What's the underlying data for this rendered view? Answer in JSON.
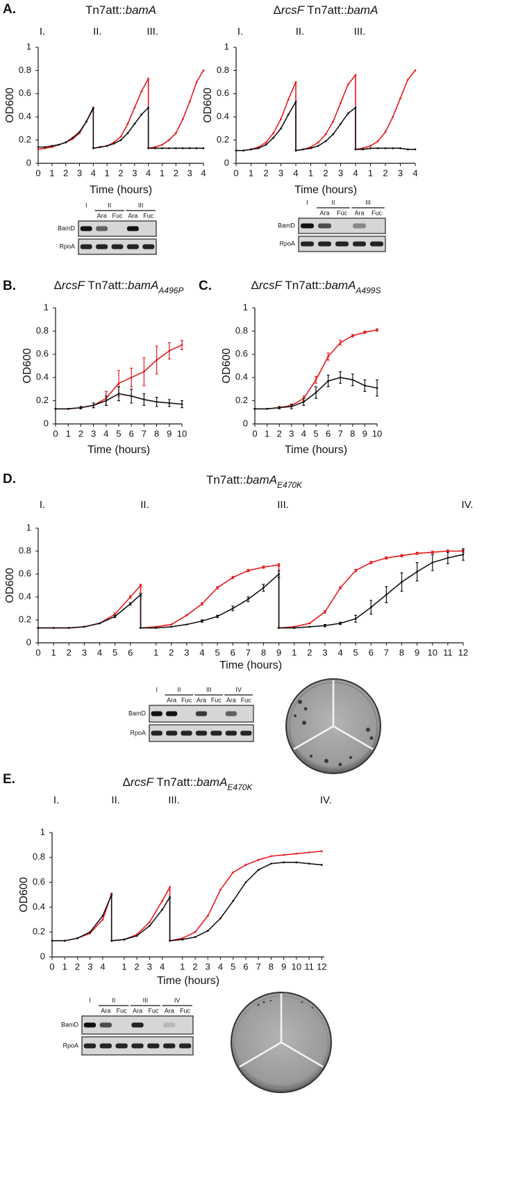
{
  "chart_data": [
    {
      "type": "line",
      "panel": "A.",
      "title": [
        {
          "text": "Tn7att::"
        },
        {
          "text": "bamA",
          "italic": true
        }
      ],
      "phase_labels": [
        {
          "label": "I.",
          "x": 0
        },
        {
          "label": "II.",
          "x": 4
        },
        {
          "label": "III.",
          "x": 8
        }
      ],
      "ylabel": "OD600",
      "xlabel": "Time (hours)",
      "xlim": [
        0,
        12
      ],
      "ylim": [
        0,
        1
      ],
      "yticks": [
        0,
        0.2,
        0.4,
        0.6,
        0.8,
        1
      ],
      "xticks": [
        0,
        1,
        2,
        3,
        4,
        {
          "value": 5,
          "label": "1"
        },
        {
          "value": 6,
          "label": "2"
        },
        {
          "value": 7,
          "label": "3"
        },
        {
          "value": 8,
          "label": "4"
        },
        {
          "value": 9,
          "label": "1"
        },
        {
          "value": 10,
          "label": "2"
        },
        {
          "value": 11,
          "label": "3"
        },
        {
          "value": 12,
          "label": "4"
        }
      ],
      "x": [
        0,
        0.5,
        1,
        1.5,
        2,
        2.5,
        3,
        3.5,
        4,
        4,
        4.5,
        5,
        5.5,
        6,
        6.5,
        7,
        7.5,
        8,
        8,
        8.5,
        9,
        9.5,
        10,
        10.5,
        11,
        11.5,
        12
      ],
      "series": [
        {
          "color": "#e8191c",
          "values": [
            0.12,
            0.13,
            0.14,
            0.16,
            0.18,
            0.21,
            0.26,
            0.36,
            0.47,
            0.13,
            0.14,
            0.15,
            0.18,
            0.23,
            0.34,
            0.48,
            0.62,
            0.73,
            0.13,
            0.14,
            0.16,
            0.2,
            0.26,
            0.38,
            0.53,
            0.7,
            0.8
          ]
        },
        {
          "color": "#111111",
          "values": [
            0.14,
            0.14,
            0.15,
            0.16,
            0.18,
            0.22,
            0.27,
            0.36,
            0.48,
            0.13,
            0.14,
            0.15,
            0.17,
            0.2,
            0.26,
            0.34,
            0.42,
            0.48,
            0.13,
            0.13,
            0.13,
            0.13,
            0.13,
            0.13,
            0.13,
            0.13,
            0.13
          ]
        }
      ],
      "blot": {
        "groups": [
          "I",
          "II",
          "III"
        ],
        "conditions": [
          "Ara",
          "Fuc",
          "Ara",
          "Fuc"
        ],
        "proteins": [
          "BamD",
          "RpoA"
        ]
      }
    },
    {
      "type": "line",
      "title": [
        {
          "text": "Δ"
        },
        {
          "text": "rcsF",
          "italic": true
        },
        {
          "text": " Tn7att::"
        },
        {
          "text": "bamA",
          "italic": true
        }
      ],
      "phase_labels": [
        {
          "label": "I.",
          "x": 0
        },
        {
          "label": "II.",
          "x": 4
        },
        {
          "label": "III.",
          "x": 8
        }
      ],
      "ylabel": "OD600",
      "xlabel": "Time (hours)",
      "xlim": [
        0,
        12
      ],
      "ylim": [
        0,
        1
      ],
      "yticks": [
        0,
        0.2,
        0.4,
        0.6,
        0.8,
        1
      ],
      "xticks": [
        0,
        1,
        2,
        3,
        4,
        {
          "value": 5,
          "label": "1"
        },
        {
          "value": 6,
          "label": "2"
        },
        {
          "value": 7,
          "label": "3"
        },
        {
          "value": 8,
          "label": "4"
        },
        {
          "value": 9,
          "label": "1"
        },
        {
          "value": 10,
          "label": "2"
        },
        {
          "value": 11,
          "label": "3"
        },
        {
          "value": 12,
          "label": "4"
        }
      ],
      "x": [
        0,
        0.5,
        1,
        1.5,
        2,
        2.5,
        3,
        3.5,
        4,
        4,
        4.5,
        5,
        5.5,
        6,
        6.5,
        7,
        7.5,
        8,
        8,
        8.5,
        9,
        9.5,
        10,
        10.5,
        11,
        11.5,
        12
      ],
      "series": [
        {
          "color": "#e8191c",
          "values": [
            0.11,
            0.11,
            0.12,
            0.14,
            0.18,
            0.26,
            0.38,
            0.55,
            0.7,
            0.11,
            0.12,
            0.14,
            0.18,
            0.25,
            0.36,
            0.52,
            0.68,
            0.76,
            0.12,
            0.13,
            0.15,
            0.19,
            0.27,
            0.4,
            0.56,
            0.72,
            0.8
          ]
        },
        {
          "color": "#111111",
          "values": [
            0.11,
            0.11,
            0.12,
            0.13,
            0.16,
            0.22,
            0.3,
            0.42,
            0.53,
            0.11,
            0.12,
            0.13,
            0.15,
            0.19,
            0.25,
            0.34,
            0.43,
            0.48,
            0.12,
            0.12,
            0.13,
            0.13,
            0.13,
            0.13,
            0.13,
            0.12,
            0.12
          ]
        }
      ],
      "blot": {
        "groups": [
          "I",
          "II",
          "III"
        ],
        "conditions": [
          "Ara",
          "Fuc",
          "Ara",
          "Fuc"
        ],
        "proteins": [
          "BamD",
          "RpoA"
        ]
      }
    },
    {
      "type": "line",
      "panel": "B.",
      "title": [
        {
          "text": "Δ"
        },
        {
          "text": "rcsF",
          "italic": true
        },
        {
          "text": " Tn7att::"
        },
        {
          "text": "bamA",
          "italic": true
        },
        {
          "text": "A496P",
          "italic": true,
          "sub": true
        }
      ],
      "ylabel": "OD600",
      "xlabel": "Time (hours)",
      "xlim": [
        0,
        10
      ],
      "ylim": [
        0,
        1
      ],
      "yticks": [
        0,
        0.2,
        0.4,
        0.6,
        0.8,
        1
      ],
      "xticks": [
        0,
        1,
        2,
        3,
        4,
        5,
        6,
        7,
        8,
        9,
        10
      ],
      "x": [
        0,
        1,
        2,
        3,
        4,
        5,
        6,
        7,
        8,
        9,
        10
      ],
      "series": [
        {
          "color": "#e8191c",
          "values": [
            0.13,
            0.13,
            0.14,
            0.16,
            0.22,
            0.35,
            0.4,
            0.45,
            0.55,
            0.63,
            0.68
          ],
          "errors": [
            0,
            0,
            0.01,
            0.02,
            0.06,
            0.11,
            0.08,
            0.12,
            0.12,
            0.07,
            0.04
          ]
        },
        {
          "color": "#111111",
          "values": [
            0.13,
            0.13,
            0.14,
            0.16,
            0.2,
            0.26,
            0.24,
            0.21,
            0.19,
            0.18,
            0.17
          ],
          "errors": [
            0,
            0,
            0.01,
            0.02,
            0.04,
            0.06,
            0.06,
            0.05,
            0.04,
            0.03,
            0.03
          ]
        }
      ]
    },
    {
      "type": "line",
      "panel": "C.",
      "title": [
        {
          "text": "Δ"
        },
        {
          "text": "rcsF",
          "italic": true
        },
        {
          "text": " Tn7att::"
        },
        {
          "text": "bamA",
          "italic": true
        },
        {
          "text": "A499S",
          "italic": true,
          "sub": true
        }
      ],
      "ylabel": "OD600",
      "xlabel": "Time (hours)",
      "xlim": [
        0,
        10
      ],
      "ylim": [
        0,
        1
      ],
      "yticks": [
        0,
        0.2,
        0.4,
        0.6,
        0.8,
        1
      ],
      "xticks": [
        0,
        1,
        2,
        3,
        4,
        5,
        6,
        7,
        8,
        9,
        10
      ],
      "x": [
        0,
        1,
        2,
        3,
        4,
        5,
        6,
        7,
        8,
        9,
        10
      ],
      "series": [
        {
          "color": "#e8191c",
          "values": [
            0.13,
            0.13,
            0.14,
            0.16,
            0.22,
            0.38,
            0.58,
            0.7,
            0.76,
            0.79,
            0.81
          ],
          "errors": [
            0,
            0,
            0,
            0.01,
            0.02,
            0.03,
            0.03,
            0.02,
            0.01,
            0.01,
            0.01
          ]
        },
        {
          "color": "#111111",
          "values": [
            0.13,
            0.13,
            0.14,
            0.15,
            0.19,
            0.27,
            0.37,
            0.4,
            0.38,
            0.33,
            0.31
          ],
          "errors": [
            0,
            0,
            0.01,
            0.02,
            0.03,
            0.05,
            0.05,
            0.05,
            0.05,
            0.05,
            0.07
          ]
        }
      ]
    },
    {
      "type": "line",
      "panel": "D.",
      "title": [
        {
          "text": "Tn7att::"
        },
        {
          "text": "bamA",
          "italic": true
        },
        {
          "text": "E470K",
          "italic": true,
          "sub": true
        }
      ],
      "phase_labels": [
        {
          "label": "I.",
          "x": 0
        },
        {
          "label": "II.",
          "x": 6.67
        },
        {
          "label": "III.",
          "x": 15.67
        },
        {
          "label": "IV.",
          "x": 27.67
        }
      ],
      "ylabel": "OD600",
      "xlabel": "Time (hours)",
      "xlim": [
        0,
        27.67
      ],
      "ylim": [
        0,
        1
      ],
      "yticks": [
        0,
        0.2,
        0.4,
        0.6,
        0.8,
        1
      ],
      "xticks": [
        0,
        1,
        2,
        3,
        4,
        5,
        6,
        {
          "value": 7.67,
          "label": "1"
        },
        {
          "value": 8.67,
          "label": "2"
        },
        {
          "value": 9.67,
          "label": "3"
        },
        {
          "value": 10.67,
          "label": "4"
        },
        {
          "value": 11.67,
          "label": "5"
        },
        {
          "value": 12.67,
          "label": "6"
        },
        {
          "value": 13.67,
          "label": "7"
        },
        {
          "value": 14.67,
          "label": "8"
        },
        {
          "value": 15.67,
          "label": "9"
        },
        {
          "value": 16.67,
          "label": "1"
        },
        {
          "value": 17.67,
          "label": "2"
        },
        {
          "value": 18.67,
          "label": "3"
        },
        {
          "value": 19.67,
          "label": "4"
        },
        {
          "value": 20.67,
          "label": "5"
        },
        {
          "value": 21.67,
          "label": "6"
        },
        {
          "value": 22.67,
          "label": "7"
        },
        {
          "value": 23.67,
          "label": "8"
        },
        {
          "value": 24.67,
          "label": "9"
        },
        {
          "value": 25.67,
          "label": "10"
        },
        {
          "value": 26.67,
          "label": "11"
        },
        {
          "value": 27.67,
          "label": "12"
        }
      ],
      "x": [
        0,
        1,
        2,
        3,
        4,
        5,
        6,
        6.67,
        6.67,
        7.67,
        8.67,
        9.67,
        10.67,
        11.67,
        12.67,
        13.67,
        14.67,
        15.67,
        15.67,
        16.67,
        17.67,
        18.67,
        19.67,
        20.67,
        21.67,
        22.67,
        23.67,
        24.67,
        25.67,
        26.67,
        27.67
      ],
      "series": [
        {
          "color": "#e8191c",
          "values": [
            0.13,
            0.13,
            0.13,
            0.14,
            0.17,
            0.25,
            0.4,
            0.5,
            0.13,
            0.14,
            0.16,
            0.24,
            0.34,
            0.48,
            0.57,
            0.63,
            0.66,
            0.68,
            0.13,
            0.14,
            0.17,
            0.27,
            0.48,
            0.63,
            0.7,
            0.74,
            0.76,
            0.78,
            0.79,
            0.8,
            0.8
          ],
          "errors": [
            0,
            0,
            0,
            0,
            0,
            0.01,
            0.01,
            0.01,
            0,
            0,
            0,
            0,
            0.01,
            0.01,
            0.01,
            0.01,
            0.01,
            0.01,
            0,
            0,
            0,
            0.01,
            0.01,
            0.01,
            0.01,
            0.01,
            0.01,
            0.01,
            0.01,
            0.01,
            0.01
          ]
        },
        {
          "color": "#111111",
          "values": [
            0.13,
            0.13,
            0.13,
            0.14,
            0.17,
            0.23,
            0.34,
            0.42,
            0.13,
            0.13,
            0.14,
            0.16,
            0.19,
            0.23,
            0.3,
            0.38,
            0.48,
            0.6,
            0.13,
            0.13,
            0.14,
            0.15,
            0.17,
            0.21,
            0.31,
            0.42,
            0.53,
            0.62,
            0.7,
            0.74,
            0.77
          ],
          "errors": [
            0,
            0,
            0,
            0,
            0,
            0.01,
            0.01,
            0.01,
            0,
            0,
            0,
            0,
            0.01,
            0.01,
            0.02,
            0.02,
            0.03,
            0.03,
            0,
            0,
            0,
            0.01,
            0.01,
            0.03,
            0.06,
            0.07,
            0.08,
            0.08,
            0.07,
            0.05,
            0.05
          ]
        }
      ],
      "blot": {
        "groups": [
          "I",
          "II",
          "III",
          "IV"
        ],
        "conditions": [
          "Ara",
          "Fuc",
          "Ara",
          "Fuc",
          "Ara",
          "Fuc"
        ],
        "proteins": [
          "BamD",
          "RpoA"
        ]
      }
    },
    {
      "type": "line",
      "panel": "E.",
      "title": [
        {
          "text": "Δ"
        },
        {
          "text": "rcsF",
          "italic": true
        },
        {
          "text": " Tn7att::"
        },
        {
          "text": "bamA",
          "italic": true
        },
        {
          "text": "E470K",
          "italic": true,
          "sub": true
        }
      ],
      "phase_labels": [
        {
          "label": "I.",
          "x": 0
        },
        {
          "label": "II.",
          "x": 4.7
        },
        {
          "label": "III.",
          "x": 9.3
        },
        {
          "label": "IV.",
          "x": 21.3
        }
      ],
      "ylabel": "OD600",
      "xlabel": "Time (hours)",
      "xlim": [
        0,
        21.5
      ],
      "ylim": [
        0,
        1
      ],
      "yticks": [
        0,
        0.2,
        0.4,
        0.6,
        0.8,
        1
      ],
      "xticks": [
        0,
        1,
        2,
        3,
        4,
        {
          "value": 5.7,
          "label": "1"
        },
        {
          "value": 6.7,
          "label": "2"
        },
        {
          "value": 7.7,
          "label": "3"
        },
        {
          "value": 8.7,
          "label": "4"
        },
        {
          "value": 10.3,
          "label": "1"
        },
        {
          "value": 11.3,
          "label": "2"
        },
        {
          "value": 12.3,
          "label": "3"
        },
        {
          "value": 13.3,
          "label": "4"
        },
        {
          "value": 14.3,
          "label": "5"
        },
        {
          "value": 15.3,
          "label": "6"
        },
        {
          "value": 16.3,
          "label": "7"
        },
        {
          "value": 17.3,
          "label": "8"
        },
        {
          "value": 18.3,
          "label": "9"
        },
        {
          "value": 19.3,
          "label": "10"
        },
        {
          "value": 20.3,
          "label": "11"
        },
        {
          "value": 21.3,
          "label": "12"
        }
      ],
      "x": [
        0,
        1,
        2,
        3,
        4,
        4.7,
        4.7,
        5.7,
        6.7,
        7.7,
        8.7,
        9.3,
        9.3,
        10.3,
        11.3,
        12.3,
        13.3,
        14.3,
        15.3,
        16.3,
        17.3,
        18.3,
        19.3,
        20.3,
        21.3
      ],
      "series": [
        {
          "color": "#e8191c",
          "values": [
            0.13,
            0.13,
            0.15,
            0.19,
            0.3,
            0.51,
            0.13,
            0.14,
            0.18,
            0.28,
            0.45,
            0.56,
            0.13,
            0.15,
            0.2,
            0.33,
            0.54,
            0.68,
            0.74,
            0.78,
            0.81,
            0.82,
            0.83,
            0.84,
            0.85
          ]
        },
        {
          "color": "#111111",
          "values": [
            0.13,
            0.13,
            0.15,
            0.2,
            0.33,
            0.5,
            0.13,
            0.14,
            0.17,
            0.25,
            0.38,
            0.48,
            0.13,
            0.14,
            0.16,
            0.21,
            0.31,
            0.45,
            0.6,
            0.7,
            0.75,
            0.76,
            0.76,
            0.75,
            0.74
          ]
        }
      ],
      "blot": {
        "groups": [
          "I",
          "II",
          "III",
          "IV"
        ],
        "conditions": [
          "Ara",
          "Fuc",
          "Ara",
          "Fuc",
          "Ara",
          "Fuc"
        ],
        "proteins": [
          "BamD",
          "RpoA"
        ]
      }
    }
  ]
}
